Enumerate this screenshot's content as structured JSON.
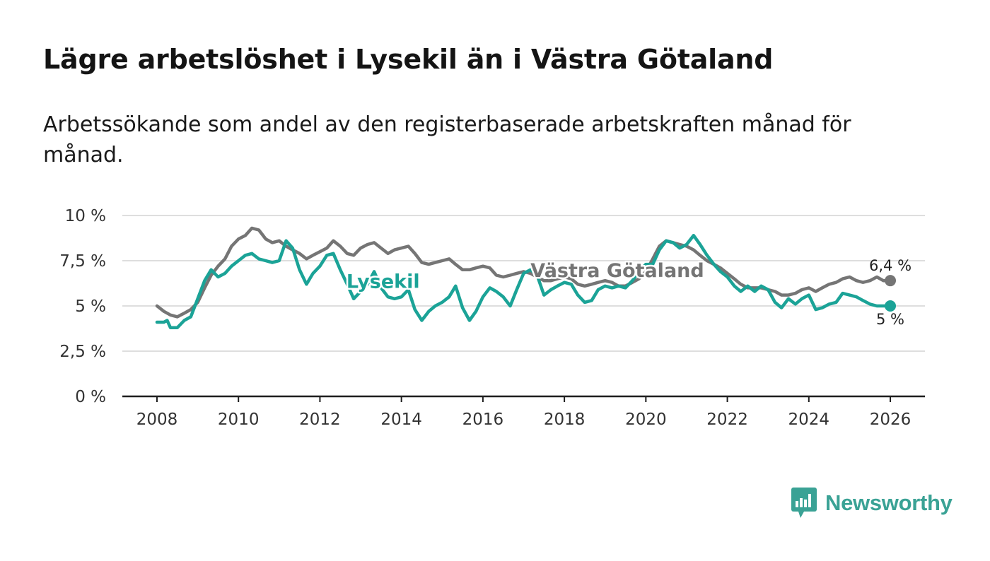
{
  "title": "Lägre arbetslöshet i Lysekil än i Västra Götaland",
  "subtitle": "Arbetssökande som andel av den registerbaserade arbetskraften månad för månad.",
  "brand": {
    "name": "Newsworthy",
    "icon": "newsworthy-logo-icon",
    "color": "#3aa295"
  },
  "chart_data": {
    "type": "line",
    "title": "Lägre arbetslöshet i Lysekil än i Västra Götaland",
    "xlabel": "",
    "ylabel": "",
    "xlim": [
      2007.15,
      2026.85
    ],
    "ylim": [
      0,
      10
    ],
    "x_ticks": [
      2008,
      2010,
      2012,
      2014,
      2016,
      2018,
      2020,
      2022,
      2024,
      2026
    ],
    "x_tick_labels": [
      "2008",
      "2010",
      "2012",
      "2014",
      "2016",
      "2018",
      "2020",
      "2022",
      "2024",
      "2026"
    ],
    "y_ticks": [
      0,
      2.5,
      5,
      7.5,
      10
    ],
    "y_tick_labels": [
      "0 %",
      "2,5 %",
      "5 %",
      "7,5 %",
      "10 %"
    ],
    "grid": true,
    "series": [
      {
        "name": "Västra Götaland",
        "color": "#757575",
        "end_label": "6,4 %",
        "points": [
          [
            2008.0,
            5.0
          ],
          [
            2008.17,
            4.7
          ],
          [
            2008.33,
            4.5
          ],
          [
            2008.5,
            4.4
          ],
          [
            2008.67,
            4.6
          ],
          [
            2008.83,
            4.8
          ],
          [
            2009.0,
            5.2
          ],
          [
            2009.17,
            6.0
          ],
          [
            2009.33,
            6.7
          ],
          [
            2009.5,
            7.2
          ],
          [
            2009.67,
            7.6
          ],
          [
            2009.83,
            8.3
          ],
          [
            2010.0,
            8.7
          ],
          [
            2010.17,
            8.9
          ],
          [
            2010.33,
            9.3
          ],
          [
            2010.5,
            9.2
          ],
          [
            2010.67,
            8.7
          ],
          [
            2010.83,
            8.5
          ],
          [
            2011.0,
            8.6
          ],
          [
            2011.17,
            8.3
          ],
          [
            2011.33,
            8.1
          ],
          [
            2011.5,
            7.9
          ],
          [
            2011.67,
            7.6
          ],
          [
            2011.83,
            7.8
          ],
          [
            2012.0,
            8.0
          ],
          [
            2012.17,
            8.2
          ],
          [
            2012.33,
            8.6
          ],
          [
            2012.5,
            8.3
          ],
          [
            2012.67,
            7.9
          ],
          [
            2012.83,
            7.8
          ],
          [
            2013.0,
            8.2
          ],
          [
            2013.17,
            8.4
          ],
          [
            2013.33,
            8.5
          ],
          [
            2013.5,
            8.2
          ],
          [
            2013.67,
            7.9
          ],
          [
            2013.83,
            8.1
          ],
          [
            2014.0,
            8.2
          ],
          [
            2014.17,
            8.3
          ],
          [
            2014.33,
            7.9
          ],
          [
            2014.5,
            7.4
          ],
          [
            2014.67,
            7.3
          ],
          [
            2014.83,
            7.4
          ],
          [
            2015.0,
            7.5
          ],
          [
            2015.17,
            7.6
          ],
          [
            2015.33,
            7.3
          ],
          [
            2015.5,
            7.0
          ],
          [
            2015.67,
            7.0
          ],
          [
            2015.83,
            7.1
          ],
          [
            2016.0,
            7.2
          ],
          [
            2016.17,
            7.1
          ],
          [
            2016.33,
            6.7
          ],
          [
            2016.5,
            6.6
          ],
          [
            2016.67,
            6.7
          ],
          [
            2016.83,
            6.8
          ],
          [
            2017.0,
            6.9
          ],
          [
            2017.17,
            6.8
          ],
          [
            2017.33,
            6.6
          ],
          [
            2017.5,
            6.4
          ],
          [
            2017.67,
            6.4
          ],
          [
            2017.83,
            6.5
          ],
          [
            2018.0,
            6.6
          ],
          [
            2018.17,
            6.5
          ],
          [
            2018.33,
            6.2
          ],
          [
            2018.5,
            6.1
          ],
          [
            2018.67,
            6.2
          ],
          [
            2018.83,
            6.3
          ],
          [
            2019.0,
            6.4
          ],
          [
            2019.17,
            6.3
          ],
          [
            2019.33,
            6.1
          ],
          [
            2019.5,
            6.1
          ],
          [
            2019.67,
            6.3
          ],
          [
            2019.83,
            6.5
          ],
          [
            2020.0,
            6.9
          ],
          [
            2020.17,
            7.6
          ],
          [
            2020.33,
            8.3
          ],
          [
            2020.5,
            8.6
          ],
          [
            2020.67,
            8.5
          ],
          [
            2020.83,
            8.4
          ],
          [
            2021.0,
            8.3
          ],
          [
            2021.17,
            8.1
          ],
          [
            2021.33,
            7.8
          ],
          [
            2021.5,
            7.5
          ],
          [
            2021.67,
            7.3
          ],
          [
            2021.83,
            7.1
          ],
          [
            2022.0,
            6.8
          ],
          [
            2022.17,
            6.5
          ],
          [
            2022.33,
            6.2
          ],
          [
            2022.5,
            6.0
          ],
          [
            2022.67,
            6.0
          ],
          [
            2022.83,
            6.0
          ],
          [
            2023.0,
            5.9
          ],
          [
            2023.17,
            5.8
          ],
          [
            2023.33,
            5.6
          ],
          [
            2023.5,
            5.6
          ],
          [
            2023.67,
            5.7
          ],
          [
            2023.83,
            5.9
          ],
          [
            2024.0,
            6.0
          ],
          [
            2024.17,
            5.8
          ],
          [
            2024.33,
            6.0
          ],
          [
            2024.5,
            6.2
          ],
          [
            2024.67,
            6.3
          ],
          [
            2024.83,
            6.5
          ],
          [
            2025.0,
            6.6
          ],
          [
            2025.17,
            6.4
          ],
          [
            2025.33,
            6.3
          ],
          [
            2025.5,
            6.4
          ],
          [
            2025.67,
            6.6
          ],
          [
            2025.83,
            6.4
          ],
          [
            2026.0,
            6.4
          ]
        ]
      },
      {
        "name": "Lysekil",
        "color": "#1ba397",
        "end_label": "5 %",
        "points": [
          [
            2008.0,
            4.1
          ],
          [
            2008.17,
            4.1
          ],
          [
            2008.25,
            4.2
          ],
          [
            2008.33,
            3.8
          ],
          [
            2008.5,
            3.8
          ],
          [
            2008.67,
            4.2
          ],
          [
            2008.83,
            4.4
          ],
          [
            2009.0,
            5.4
          ],
          [
            2009.17,
            6.4
          ],
          [
            2009.33,
            7.0
          ],
          [
            2009.5,
            6.6
          ],
          [
            2009.67,
            6.8
          ],
          [
            2009.83,
            7.2
          ],
          [
            2010.0,
            7.5
          ],
          [
            2010.17,
            7.8
          ],
          [
            2010.33,
            7.9
          ],
          [
            2010.5,
            7.6
          ],
          [
            2010.67,
            7.5
          ],
          [
            2010.83,
            7.4
          ],
          [
            2011.0,
            7.5
          ],
          [
            2011.17,
            8.6
          ],
          [
            2011.33,
            8.2
          ],
          [
            2011.5,
            7.0
          ],
          [
            2011.67,
            6.2
          ],
          [
            2011.83,
            6.8
          ],
          [
            2012.0,
            7.2
          ],
          [
            2012.17,
            7.8
          ],
          [
            2012.33,
            7.9
          ],
          [
            2012.5,
            7.0
          ],
          [
            2012.67,
            6.2
          ],
          [
            2012.83,
            5.4
          ],
          [
            2013.0,
            5.8
          ],
          [
            2013.17,
            6.2
          ],
          [
            2013.33,
            6.9
          ],
          [
            2013.5,
            6.0
          ],
          [
            2013.67,
            5.5
          ],
          [
            2013.83,
            5.4
          ],
          [
            2014.0,
            5.5
          ],
          [
            2014.17,
            5.9
          ],
          [
            2014.33,
            4.8
          ],
          [
            2014.5,
            4.2
          ],
          [
            2014.67,
            4.7
          ],
          [
            2014.83,
            5.0
          ],
          [
            2015.0,
            5.2
          ],
          [
            2015.17,
            5.5
          ],
          [
            2015.33,
            6.1
          ],
          [
            2015.5,
            4.9
          ],
          [
            2015.67,
            4.2
          ],
          [
            2015.83,
            4.7
          ],
          [
            2016.0,
            5.5
          ],
          [
            2016.17,
            6.0
          ],
          [
            2016.33,
            5.8
          ],
          [
            2016.5,
            5.5
          ],
          [
            2016.67,
            5.0
          ],
          [
            2016.83,
            5.9
          ],
          [
            2017.0,
            6.8
          ],
          [
            2017.17,
            7.0
          ],
          [
            2017.33,
            6.7
          ],
          [
            2017.5,
            5.6
          ],
          [
            2017.67,
            5.9
          ],
          [
            2017.83,
            6.1
          ],
          [
            2018.0,
            6.3
          ],
          [
            2018.17,
            6.2
          ],
          [
            2018.33,
            5.6
          ],
          [
            2018.5,
            5.2
          ],
          [
            2018.67,
            5.3
          ],
          [
            2018.83,
            5.9
          ],
          [
            2019.0,
            6.1
          ],
          [
            2019.17,
            6.0
          ],
          [
            2019.33,
            6.1
          ],
          [
            2019.5,
            6.0
          ],
          [
            2019.67,
            6.4
          ],
          [
            2019.83,
            6.9
          ],
          [
            2020.0,
            7.3
          ],
          [
            2020.17,
            7.3
          ],
          [
            2020.33,
            8.1
          ],
          [
            2020.5,
            8.6
          ],
          [
            2020.67,
            8.5
          ],
          [
            2020.83,
            8.2
          ],
          [
            2021.0,
            8.4
          ],
          [
            2021.17,
            8.9
          ],
          [
            2021.33,
            8.4
          ],
          [
            2021.5,
            7.8
          ],
          [
            2021.67,
            7.3
          ],
          [
            2021.83,
            6.9
          ],
          [
            2022.0,
            6.6
          ],
          [
            2022.17,
            6.1
          ],
          [
            2022.33,
            5.8
          ],
          [
            2022.5,
            6.1
          ],
          [
            2022.67,
            5.8
          ],
          [
            2022.83,
            6.1
          ],
          [
            2023.0,
            5.9
          ],
          [
            2023.17,
            5.2
          ],
          [
            2023.33,
            4.9
          ],
          [
            2023.5,
            5.4
          ],
          [
            2023.67,
            5.1
          ],
          [
            2023.83,
            5.4
          ],
          [
            2024.0,
            5.6
          ],
          [
            2024.17,
            4.8
          ],
          [
            2024.33,
            4.9
          ],
          [
            2024.5,
            5.1
          ],
          [
            2024.67,
            5.2
          ],
          [
            2024.83,
            5.7
          ],
          [
            2025.0,
            5.6
          ],
          [
            2025.17,
            5.5
          ],
          [
            2025.33,
            5.3
          ],
          [
            2025.5,
            5.1
          ],
          [
            2025.67,
            5.0
          ],
          [
            2025.83,
            5.0
          ],
          [
            2026.0,
            5.0
          ]
        ]
      }
    ]
  }
}
